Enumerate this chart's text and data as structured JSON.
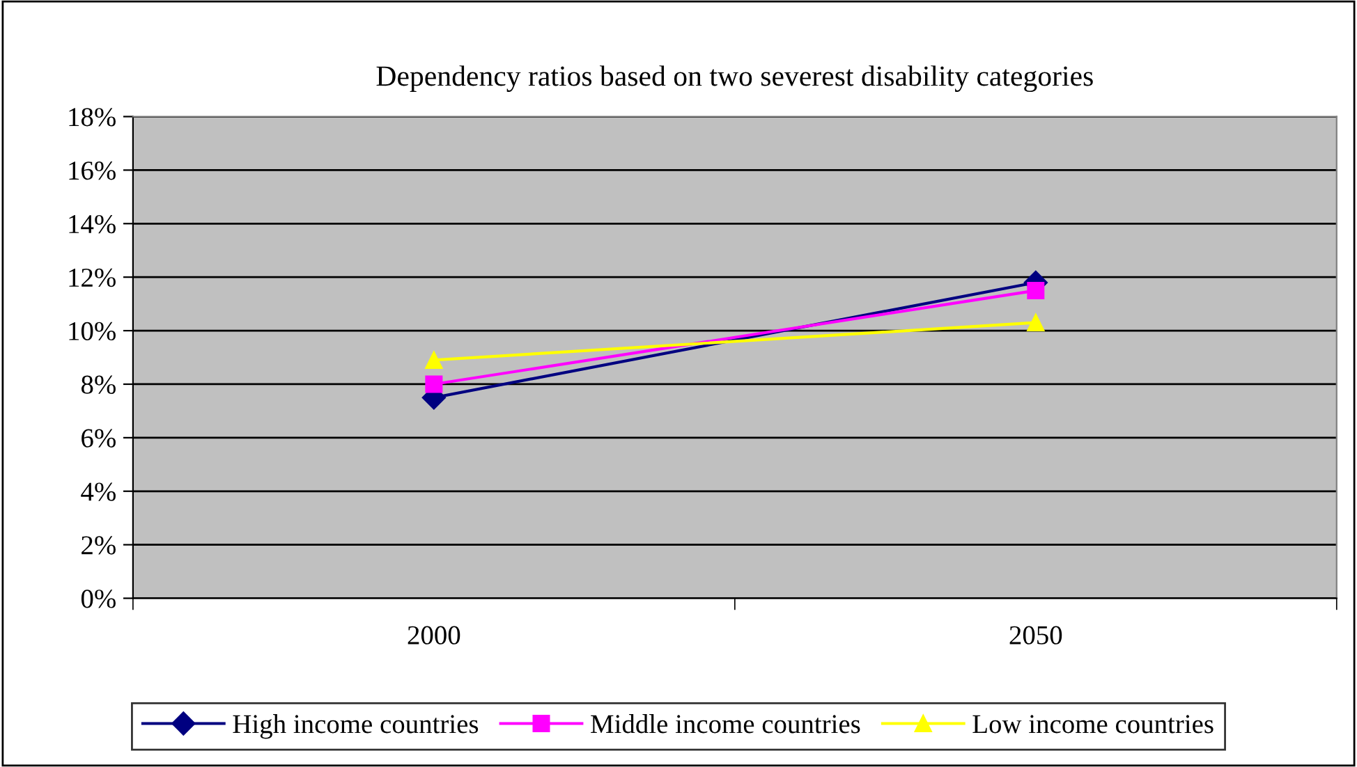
{
  "chart_data": {
    "type": "line",
    "title": "Dependency ratios based on two severest disability categories",
    "categories": [
      "2000",
      "2050"
    ],
    "series": [
      {
        "name": "High income countries",
        "color": "#000080",
        "marker": "diamond",
        "values": [
          7.5,
          11.8
        ]
      },
      {
        "name": "Middle income countries",
        "color": "#ff00ff",
        "marker": "square",
        "values": [
          8.0,
          11.5
        ]
      },
      {
        "name": "Low income countries",
        "color": "#ffff00",
        "marker": "triangle",
        "values": [
          8.9,
          10.3
        ]
      }
    ],
    "ylim": [
      0,
      18
    ],
    "yticks": [
      {
        "value": 0,
        "label": "0%"
      },
      {
        "value": 2,
        "label": "2%"
      },
      {
        "value": 4,
        "label": "4%"
      },
      {
        "value": 6,
        "label": "6%"
      },
      {
        "value": 8,
        "label": "8%"
      },
      {
        "value": 10,
        "label": "10%"
      },
      {
        "value": 12,
        "label": "12%"
      },
      {
        "value": 14,
        "label": "14%"
      },
      {
        "value": 16,
        "label": "16%"
      },
      {
        "value": 18,
        "label": "18%"
      }
    ],
    "grid": "y",
    "legend": "bottom",
    "line_style": "solid"
  }
}
